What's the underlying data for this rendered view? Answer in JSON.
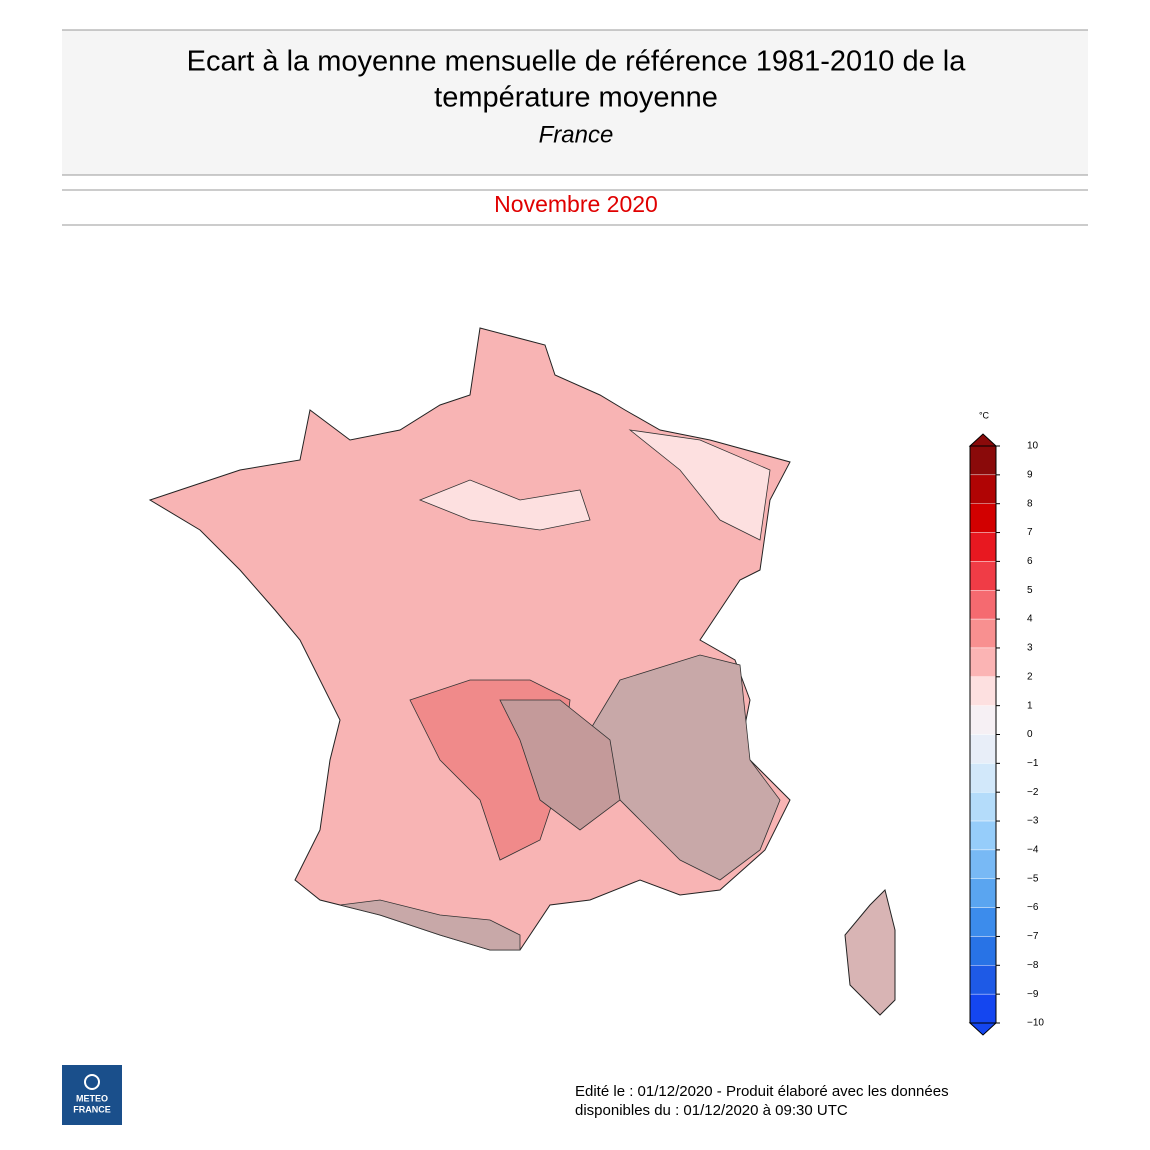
{
  "header": {
    "title_lines": [
      "Ecart à la moyenne mensuelle de référence 1981-2010 de la",
      "température moyenne"
    ],
    "region": "France",
    "period": "Novembre 2020"
  },
  "colorbar": {
    "unit": "°C",
    "ticks": [
      10,
      9,
      8,
      7,
      6,
      5,
      4,
      3,
      2,
      1,
      0,
      {
        "value": -1,
        "label": "−1"
      },
      {
        "value": -2,
        "label": "−2"
      },
      {
        "value": -3,
        "label": "−3"
      },
      {
        "value": -4,
        "label": "−4"
      },
      {
        "value": -5,
        "label": "−5"
      },
      {
        "value": -6,
        "label": "−6"
      },
      {
        "value": -7,
        "label": "−7"
      },
      {
        "value": -8,
        "label": "−8"
      },
      {
        "value": -9,
        "label": "−9"
      },
      {
        "value": -10,
        "label": "−10"
      }
    ],
    "colors": [
      "#8a0a0a",
      "#b00404",
      "#d20000",
      "#e81820",
      "#f03c46",
      "#f56a70",
      "#f89090",
      "#fbb4b4",
      "#fde0e0",
      "#f6f0f4",
      "#e8eef8",
      "#d2e8fa",
      "#b4dcfa",
      "#96cdfa",
      "#78b9f5",
      "#5aa5f0",
      "#3c8cec",
      "#2873e6",
      "#1e5ae6",
      "#1446f0"
    ]
  },
  "logo": {
    "line1": "METEO",
    "line2": "FRANCE"
  },
  "footer": {
    "line1": "Edité le : 01/12/2020 - Produit élaboré avec les données",
    "line2": "disponibles du : 01/12/2020 à 09:30 UTC"
  }
}
